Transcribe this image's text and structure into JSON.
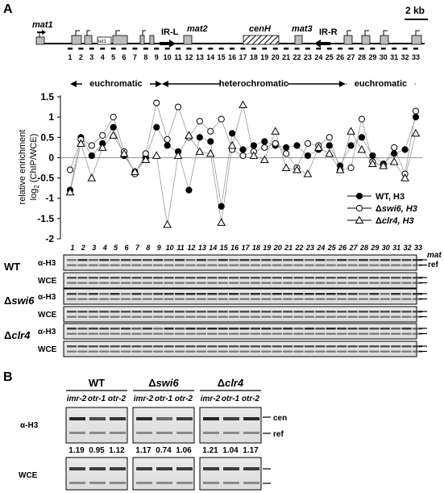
{
  "panel_a": {
    "letter": "A",
    "scale_bar": "2 kb",
    "map_labels": {
      "mat1": "mat1",
      "mat2": "mat2",
      "mat3": "mat3",
      "cenH": "cenH",
      "irl": "IR-L",
      "irr": "IR-R",
      "tet": "tet1"
    },
    "regions": [
      {
        "label": "euchromatic",
        "span": [
          1,
          9.5
        ]
      },
      {
        "label": "heterochromatic",
        "span": [
          9.5,
          26.5
        ]
      },
      {
        "label": "euchromatic",
        "span": [
          26.5,
          33
        ]
      }
    ],
    "gel_sample_labels": [
      "1",
      "2",
      "3",
      "4",
      "5",
      "6",
      "7",
      "8",
      "9",
      "10",
      "11",
      "12",
      "13",
      "14",
      "15",
      "16",
      "17",
      "18",
      "19",
      "20",
      "21",
      "22",
      "23",
      "24",
      "25",
      "26",
      "27",
      "28",
      "29",
      "30",
      "31",
      "32",
      "33"
    ],
    "gel_groups": [
      {
        "strain": "WT",
        "lanes": [
          "α-H3",
          "WCE"
        ]
      },
      {
        "strain": "Δswi6",
        "lanes": [
          "α-H3",
          "WCE"
        ]
      },
      {
        "strain": "Δclr4",
        "lanes": [
          "α-H3",
          "WCE"
        ]
      }
    ],
    "band_labels": {
      "mat": "mat",
      "ref": "ref"
    }
  },
  "chart_data": {
    "type": "line",
    "ylabel": "relative enrichment log2 (ChIP/WCE)",
    "ylim": [
      -2,
      1.5
    ],
    "yticks": [
      1.5,
      1,
      0.5,
      0,
      -0.5,
      -1,
      -1.5,
      -2
    ],
    "x": [
      1,
      2,
      3,
      4,
      5,
      6,
      7,
      8,
      9,
      10,
      11,
      12,
      13,
      14,
      15,
      16,
      17,
      18,
      19,
      20,
      21,
      22,
      23,
      24,
      25,
      26,
      27,
      28,
      29,
      30,
      31,
      32,
      33
    ],
    "series": [
      {
        "name": "WT, H3",
        "marker": "filled-circle",
        "values": [
          -0.8,
          0.5,
          0.05,
          0.35,
          0.75,
          0.05,
          -0.35,
          0.0,
          0.75,
          0.3,
          0.15,
          -0.8,
          0.5,
          0.4,
          -1.2,
          0.6,
          0.2,
          0.3,
          0.4,
          0.3,
          0.25,
          0.3,
          0.05,
          0.2,
          0.3,
          -0.2,
          0.3,
          0.5,
          0.05,
          -0.15,
          0.1,
          0.2,
          1.0
        ]
      },
      {
        "name": "Δswi6, H3",
        "marker": "open-circle",
        "values": [
          -0.3,
          0.45,
          0.3,
          0.55,
          1.0,
          0.15,
          -0.4,
          0.1,
          1.35,
          0.45,
          1.25,
          0.5,
          0.9,
          0.65,
          0.95,
          0.2,
          0.05,
          0.15,
          0.25,
          0.35,
          0.1,
          -0.25,
          0.35,
          0.3,
          0.5,
          -0.3,
          -0.25,
          0.95,
          -0.1,
          -0.2,
          0.25,
          -0.4,
          1.15
        ]
      },
      {
        "name": "Δclr4, H3",
        "marker": "open-triangle",
        "values": [
          -0.85,
          0.35,
          -0.5,
          0.25,
          0.55,
          0.1,
          -0.35,
          -0.05,
          0.05,
          -1.65,
          0.05,
          0.55,
          0.15,
          0.1,
          -1.6,
          0.3,
          1.3,
          0.05,
          -0.05,
          0.65,
          -0.25,
          -0.3,
          -0.4,
          0.25,
          0.1,
          -0.3,
          0.65,
          0.2,
          -0.15,
          -0.2,
          -0.1,
          -0.5,
          0.6
        ]
      }
    ],
    "legend": [
      "WT, H3",
      "Δswi6, H3",
      "Δclr4, H3"
    ],
    "legend_position": "lower-right",
    "zero_line": true
  },
  "panel_b": {
    "letter": "B",
    "groups": [
      {
        "strain": "WT",
        "lanes": [
          "imr-2",
          "otr-1",
          "otr-2"
        ],
        "values": [
          "1.19",
          "0.95",
          "1.12"
        ]
      },
      {
        "strain": "Δswi6",
        "lanes": [
          "imr-2",
          "otr-1",
          "otr-2"
        ],
        "values": [
          "1.17",
          "0.74",
          "1.06"
        ]
      },
      {
        "strain": "Δclr4",
        "lanes": [
          "imr-2",
          "otr-1",
          "otr-2"
        ],
        "values": [
          "1.21",
          "1.04",
          "1.17"
        ]
      }
    ],
    "row_labels": [
      "α-H3",
      "WCE"
    ],
    "band_labels": {
      "cen": "cen",
      "ref": "ref"
    }
  }
}
